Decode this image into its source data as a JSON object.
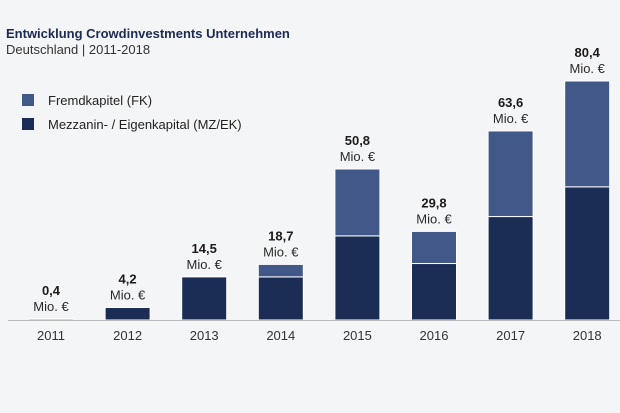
{
  "chart_data": {
    "type": "bar",
    "stacked": true,
    "title": "Entwicklung Crowdinvestments Unternehmen",
    "subtitle": "Deutschland | 2011-2018",
    "categories": [
      "2011",
      "2012",
      "2013",
      "2014",
      "2015",
      "2016",
      "2017",
      "2018"
    ],
    "totals": [
      0.4,
      4.2,
      14.5,
      18.7,
      50.8,
      29.8,
      63.6,
      80.4
    ],
    "total_labels": [
      "0,4",
      "4,2",
      "14,5",
      "18,7",
      "50,8",
      "29,8",
      "63,6",
      "80,4"
    ],
    "unit_label": "Mio. €",
    "series": [
      {
        "name": "Mezzanin- / Eigenkapital (MZ/EK)",
        "color": "#1c2d55",
        "values": [
          0.4,
          4.2,
          14.5,
          14.5,
          28.3,
          19.0,
          34.8,
          44.8
        ]
      },
      {
        "name": "Fremdkapitel (FK)",
        "color": "#425889",
        "values": [
          0.0,
          0.0,
          0.0,
          4.2,
          22.5,
          10.8,
          28.8,
          35.6
        ]
      }
    ],
    "legend_order": [
      1,
      0
    ],
    "legend_position": "top-left",
    "ylim": [
      0,
      80.4
    ],
    "grid": false,
    "y_axis_visible": false
  }
}
